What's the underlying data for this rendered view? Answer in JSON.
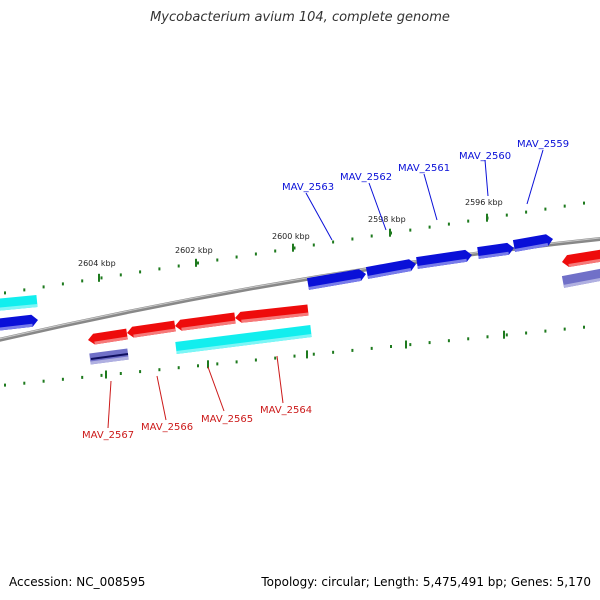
{
  "title": "Mycobacterium avium 104, complete genome",
  "footer": {
    "accession": "Accession: NC_008595",
    "summary": "Topology: circular; Length: 5,475,491 bp; Genes: 5,170"
  },
  "colors": {
    "forward_cds": "#0a10d8",
    "reverse_cds": "#ee0c0c",
    "forward_other": "#12eeee",
    "reverse_other": "#7070c8",
    "backbone": "#888888",
    "ticks": "#1e7a1e",
    "forward_label": "#0a10d8",
    "reverse_label": "#cc1a1a"
  },
  "ticks": {
    "labels": [
      "2604 kbp",
      "2602 kbp",
      "2600 kbp",
      "2598 kbp",
      "2596 kbp"
    ]
  },
  "genes_forward": [
    {
      "label": "MAV_2563"
    },
    {
      "label": "MAV_2562"
    },
    {
      "label": "MAV_2561"
    },
    {
      "label": "MAV_2560"
    },
    {
      "label": "MAV_2559"
    }
  ],
  "genes_reverse": [
    {
      "label": "MAV_2567"
    },
    {
      "label": "MAV_2566"
    },
    {
      "label": "MAV_2565"
    },
    {
      "label": "MAV_2564"
    }
  ]
}
